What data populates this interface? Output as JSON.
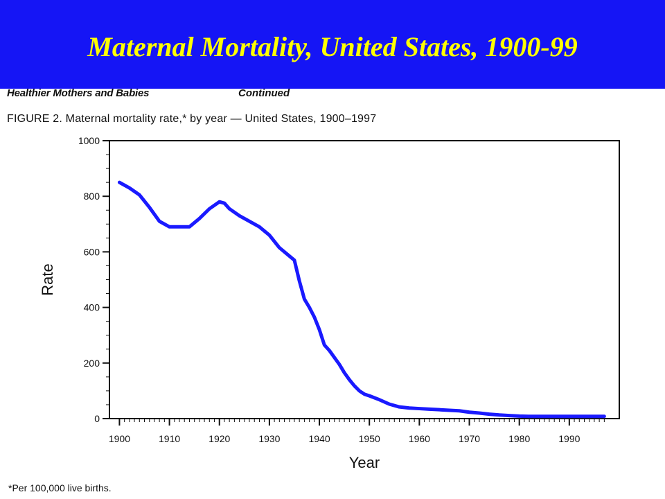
{
  "slide": {
    "title": "Maternal Mortality, United States, 1900-99"
  },
  "figure": {
    "header_left": "Healthier Mothers and Babies",
    "header_right": "Continued",
    "caption": "FIGURE 2. Maternal mortality rate,* by year — United States, 1900–1997",
    "footnote": "*Per 100,000 live births."
  },
  "colors": {
    "banner": "#1515f5",
    "title": "#ffff00",
    "line": "#1a1aff"
  },
  "chart_data": {
    "type": "line",
    "title": "",
    "xlabel": "Year",
    "ylabel": "Rate",
    "xlim": [
      1898,
      2000
    ],
    "ylim": [
      0,
      1000
    ],
    "xticks": [
      1900,
      1910,
      1920,
      1930,
      1940,
      1950,
      1960,
      1970,
      1980,
      1990
    ],
    "xtick_labels": [
      "1900",
      "1910",
      "1920",
      "1930",
      "1940",
      "1950",
      "1960",
      "1970",
      "1980",
      "1990"
    ],
    "yticks": [
      0,
      200,
      400,
      600,
      800,
      1000
    ],
    "ytick_labels": [
      "0",
      "200",
      "400",
      "600",
      "800",
      "1000"
    ],
    "grid": false,
    "series": [
      {
        "name": "",
        "color": "#1a1aff",
        "x": [
          1900,
          1902,
          1904,
          1906,
          1908,
          1910,
          1912,
          1914,
          1916,
          1918,
          1920,
          1921,
          1922,
          1924,
          1926,
          1928,
          1930,
          1932,
          1934,
          1935,
          1936,
          1937,
          1938,
          1939,
          1940,
          1941,
          1942,
          1943,
          1944,
          1945,
          1946,
          1947,
          1948,
          1949,
          1950,
          1952,
          1954,
          1956,
          1958,
          1960,
          1962,
          1964,
          1966,
          1968,
          1970,
          1972,
          1974,
          1976,
          1978,
          1980,
          1982,
          1984,
          1986,
          1988,
          1990,
          1992,
          1994,
          1996,
          1997
        ],
        "y": [
          850,
          830,
          805,
          760,
          710,
          690,
          690,
          690,
          720,
          755,
          780,
          775,
          755,
          730,
          710,
          690,
          660,
          615,
          585,
          570,
          495,
          430,
          400,
          365,
          320,
          265,
          245,
          220,
          195,
          165,
          140,
          118,
          100,
          88,
          82,
          68,
          52,
          42,
          38,
          36,
          34,
          32,
          30,
          28,
          23,
          20,
          16,
          13,
          11,
          9,
          8,
          8,
          8,
          8,
          8,
          8,
          8,
          8,
          8
        ]
      }
    ]
  }
}
